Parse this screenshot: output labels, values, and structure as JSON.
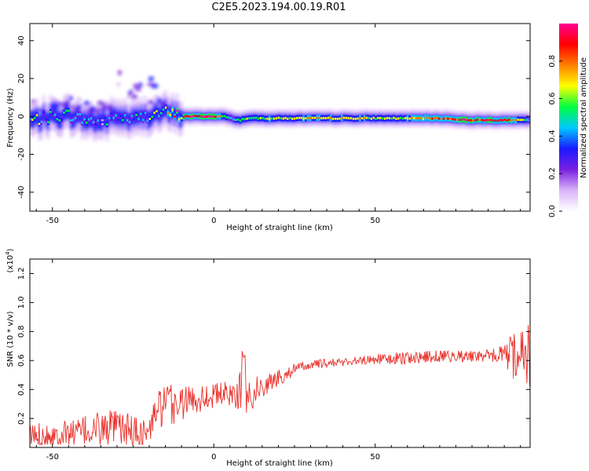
{
  "page": {
    "title": "C2E5.2023.194.00.19.R01"
  },
  "chart_data": [
    {
      "type": "heatmap",
      "title": "C2E5.2023.194.00.19.R01",
      "xlabel": "Height of straight line (km)",
      "ylabel": "Frequency (Hz)",
      "xlim": [
        -57,
        98
      ],
      "ylim": [
        -50,
        49
      ],
      "xticks": [
        -50,
        0,
        50
      ],
      "yticks": [
        -40,
        -20,
        0,
        20,
        40
      ],
      "colorbar": {
        "label": "Normalized spectral amplitude",
        "range": [
          0.0,
          1.0
        ],
        "ticks": [
          0.0,
          0.2,
          0.4,
          0.6,
          0.8
        ],
        "colormap": [
          "#ffffff",
          "#d8b4f8",
          "#7a1fe0",
          "#1a1aff",
          "#00c8ff",
          "#00ff40",
          "#ffff00",
          "#ff8000",
          "#ff0000",
          "#ff0090"
        ]
      },
      "ridge": {
        "description_x": [
          -56,
          -50,
          -45,
          -40,
          -35,
          -30,
          -25,
          -20,
          -15,
          -10,
          -5,
          0,
          3,
          5,
          8,
          10,
          15,
          20,
          30,
          40,
          50,
          60,
          70,
          80,
          90,
          96,
          98
        ],
        "frequency_hz": [
          -2,
          0,
          1,
          -2,
          -3,
          0,
          -2,
          1,
          2,
          0,
          0,
          0,
          0,
          -1,
          -2,
          -1,
          -1,
          -1,
          -1,
          -1,
          -1,
          -1,
          -1,
          -2,
          -2,
          -2,
          -2
        ],
        "peak_amplitude": [
          0.5,
          0.5,
          0.45,
          0.45,
          0.4,
          0.45,
          0.5,
          0.5,
          0.6,
          0.9,
          0.95,
          0.95,
          0.6,
          0.5,
          0.55,
          0.6,
          0.65,
          0.65,
          0.7,
          0.7,
          0.65,
          0.65,
          0.85,
          0.9,
          0.95,
          0.6,
          0.4
        ]
      }
    },
    {
      "type": "line",
      "xlabel": "Height of straight line (km)",
      "ylabel": "SNR (10 * v/v)",
      "y_multiplier_label": "(x10",
      "y_multiplier_exp": "4",
      "xlim": [
        -57,
        98
      ],
      "ylim": [
        0,
        13000
      ],
      "xticks": [
        -50,
        0,
        50
      ],
      "yticks": [
        2000,
        4000,
        6000,
        8000,
        10000,
        12000
      ],
      "ytick_labels": [
        "0.2",
        "0.4",
        "0.6",
        "0.8",
        "1.0",
        "1.2"
      ],
      "color": "#e8302a",
      "trend_x": [
        -56,
        -50,
        -45,
        -40,
        -35,
        -30,
        -25,
        -20,
        -18,
        -15,
        -12,
        -10,
        -5,
        0,
        5,
        8,
        10,
        12,
        15,
        20,
        25,
        30,
        35,
        40,
        45,
        50,
        55,
        60,
        65,
        70,
        75,
        80,
        85,
        90,
        92,
        94,
        96,
        98
      ],
      "trend_snr": [
        800,
        900,
        1000,
        1100,
        1300,
        1300,
        1100,
        1000,
        2600,
        2800,
        3000,
        3100,
        3400,
        3600,
        3700,
        3900,
        3700,
        3800,
        4200,
        4800,
        5400,
        5700,
        5800,
        5900,
        6000,
        6100,
        6100,
        6200,
        6200,
        6300,
        6300,
        6300,
        6300,
        6400,
        6200,
        6400,
        6600,
        6500
      ],
      "noise_amplitude": [
        900,
        900,
        900,
        1100,
        1300,
        1300,
        1200,
        1000,
        1200,
        1500,
        1800,
        1200,
        1000,
        900,
        900,
        1300,
        1500,
        1200,
        800,
        600,
        400,
        350,
        300,
        300,
        300,
        350,
        400,
        450,
        450,
        400,
        400,
        400,
        450,
        700,
        1500,
        1600,
        1800,
        3000
      ]
    }
  ]
}
